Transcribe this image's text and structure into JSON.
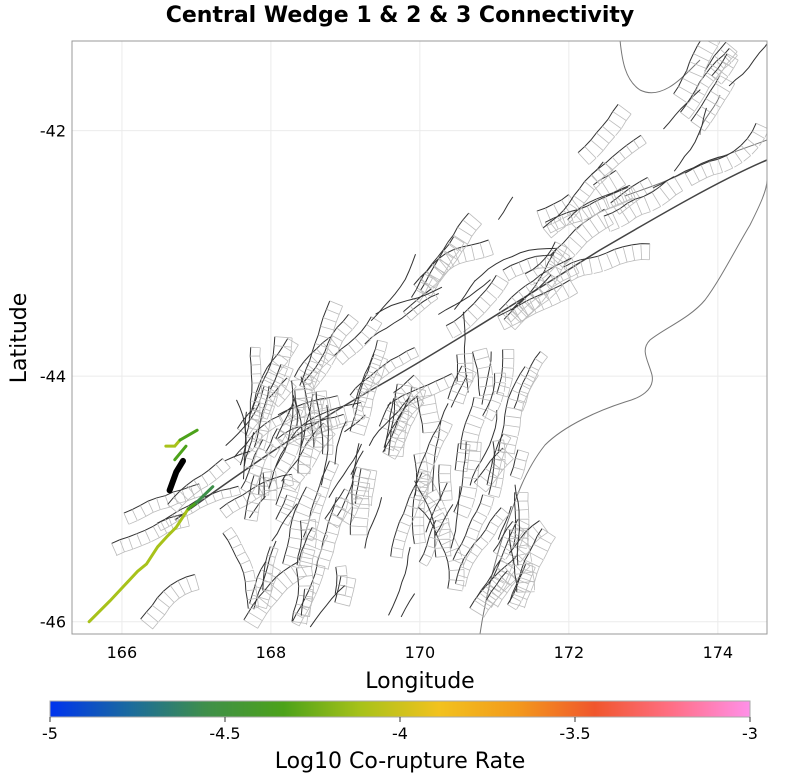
{
  "chart_data": {
    "type": "map",
    "title": "Central Wedge 1 & 2 & 3 Connectivity",
    "xlabel": "Longitude",
    "ylabel": "Latitude",
    "xlim": [
      165.33,
      174.66
    ],
    "ylim": [
      -46.1,
      -41.27
    ],
    "xticks": [
      "166",
      "168",
      "170",
      "172",
      "174"
    ],
    "xtick_values": [
      166,
      168,
      170,
      172,
      174
    ],
    "yticks": [
      "-42",
      "-44",
      "-46"
    ],
    "ytick_values": [
      -42,
      -44,
      -46
    ],
    "grid": true,
    "colorbar": {
      "label": "Log10 Co-rupture Rate",
      "range": [
        -5,
        -3
      ],
      "ticks": [
        "-5",
        "-4.5",
        "-4",
        "-3.5",
        "-3"
      ],
      "tick_values": [
        -5,
        -4.5,
        -4,
        -3.5,
        -3
      ],
      "placement": "bottom",
      "colors": [
        "#0033ee",
        "#1a6aa0",
        "#3f8f4a",
        "#4ca21a",
        "#a8c21a",
        "#f2c21e",
        "#f39a1c",
        "#f0562c",
        "#ff6f86",
        "#ff90e8"
      ]
    },
    "source_section": {
      "color": "#000000",
      "points": [
        [
          166.64,
          -44.93
        ],
        [
          166.73,
          -44.78
        ],
        [
          166.82,
          -44.69
        ]
      ]
    },
    "corupture_sections": [
      {
        "value": -4.05,
        "points": [
          [
            165.56,
            -46.0
          ],
          [
            165.84,
            -45.83
          ],
          [
            166.21,
            -45.59
          ],
          [
            166.33,
            -45.53
          ],
          [
            166.48,
            -45.39
          ],
          [
            166.6,
            -45.31
          ],
          [
            166.73,
            -45.23
          ],
          [
            166.89,
            -45.08
          ]
        ]
      },
      {
        "value": -4.3,
        "points": [
          [
            166.89,
            -45.08
          ],
          [
            167.0,
            -45.03
          ]
        ]
      },
      {
        "value": -4.55,
        "points": [
          [
            167.0,
            -45.03
          ],
          [
            167.22,
            -44.9
          ]
        ]
      },
      {
        "value": -4.3,
        "points": [
          [
            166.71,
            -44.68
          ],
          [
            166.86,
            -44.57
          ]
        ]
      },
      {
        "value": -4.05,
        "points": [
          [
            166.59,
            -44.57
          ],
          [
            166.71,
            -44.57
          ],
          [
            166.78,
            -44.52
          ]
        ]
      },
      {
        "value": -4.4,
        "points": [
          [
            166.78,
            -44.52
          ],
          [
            167.01,
            -44.44
          ]
        ]
      }
    ]
  }
}
